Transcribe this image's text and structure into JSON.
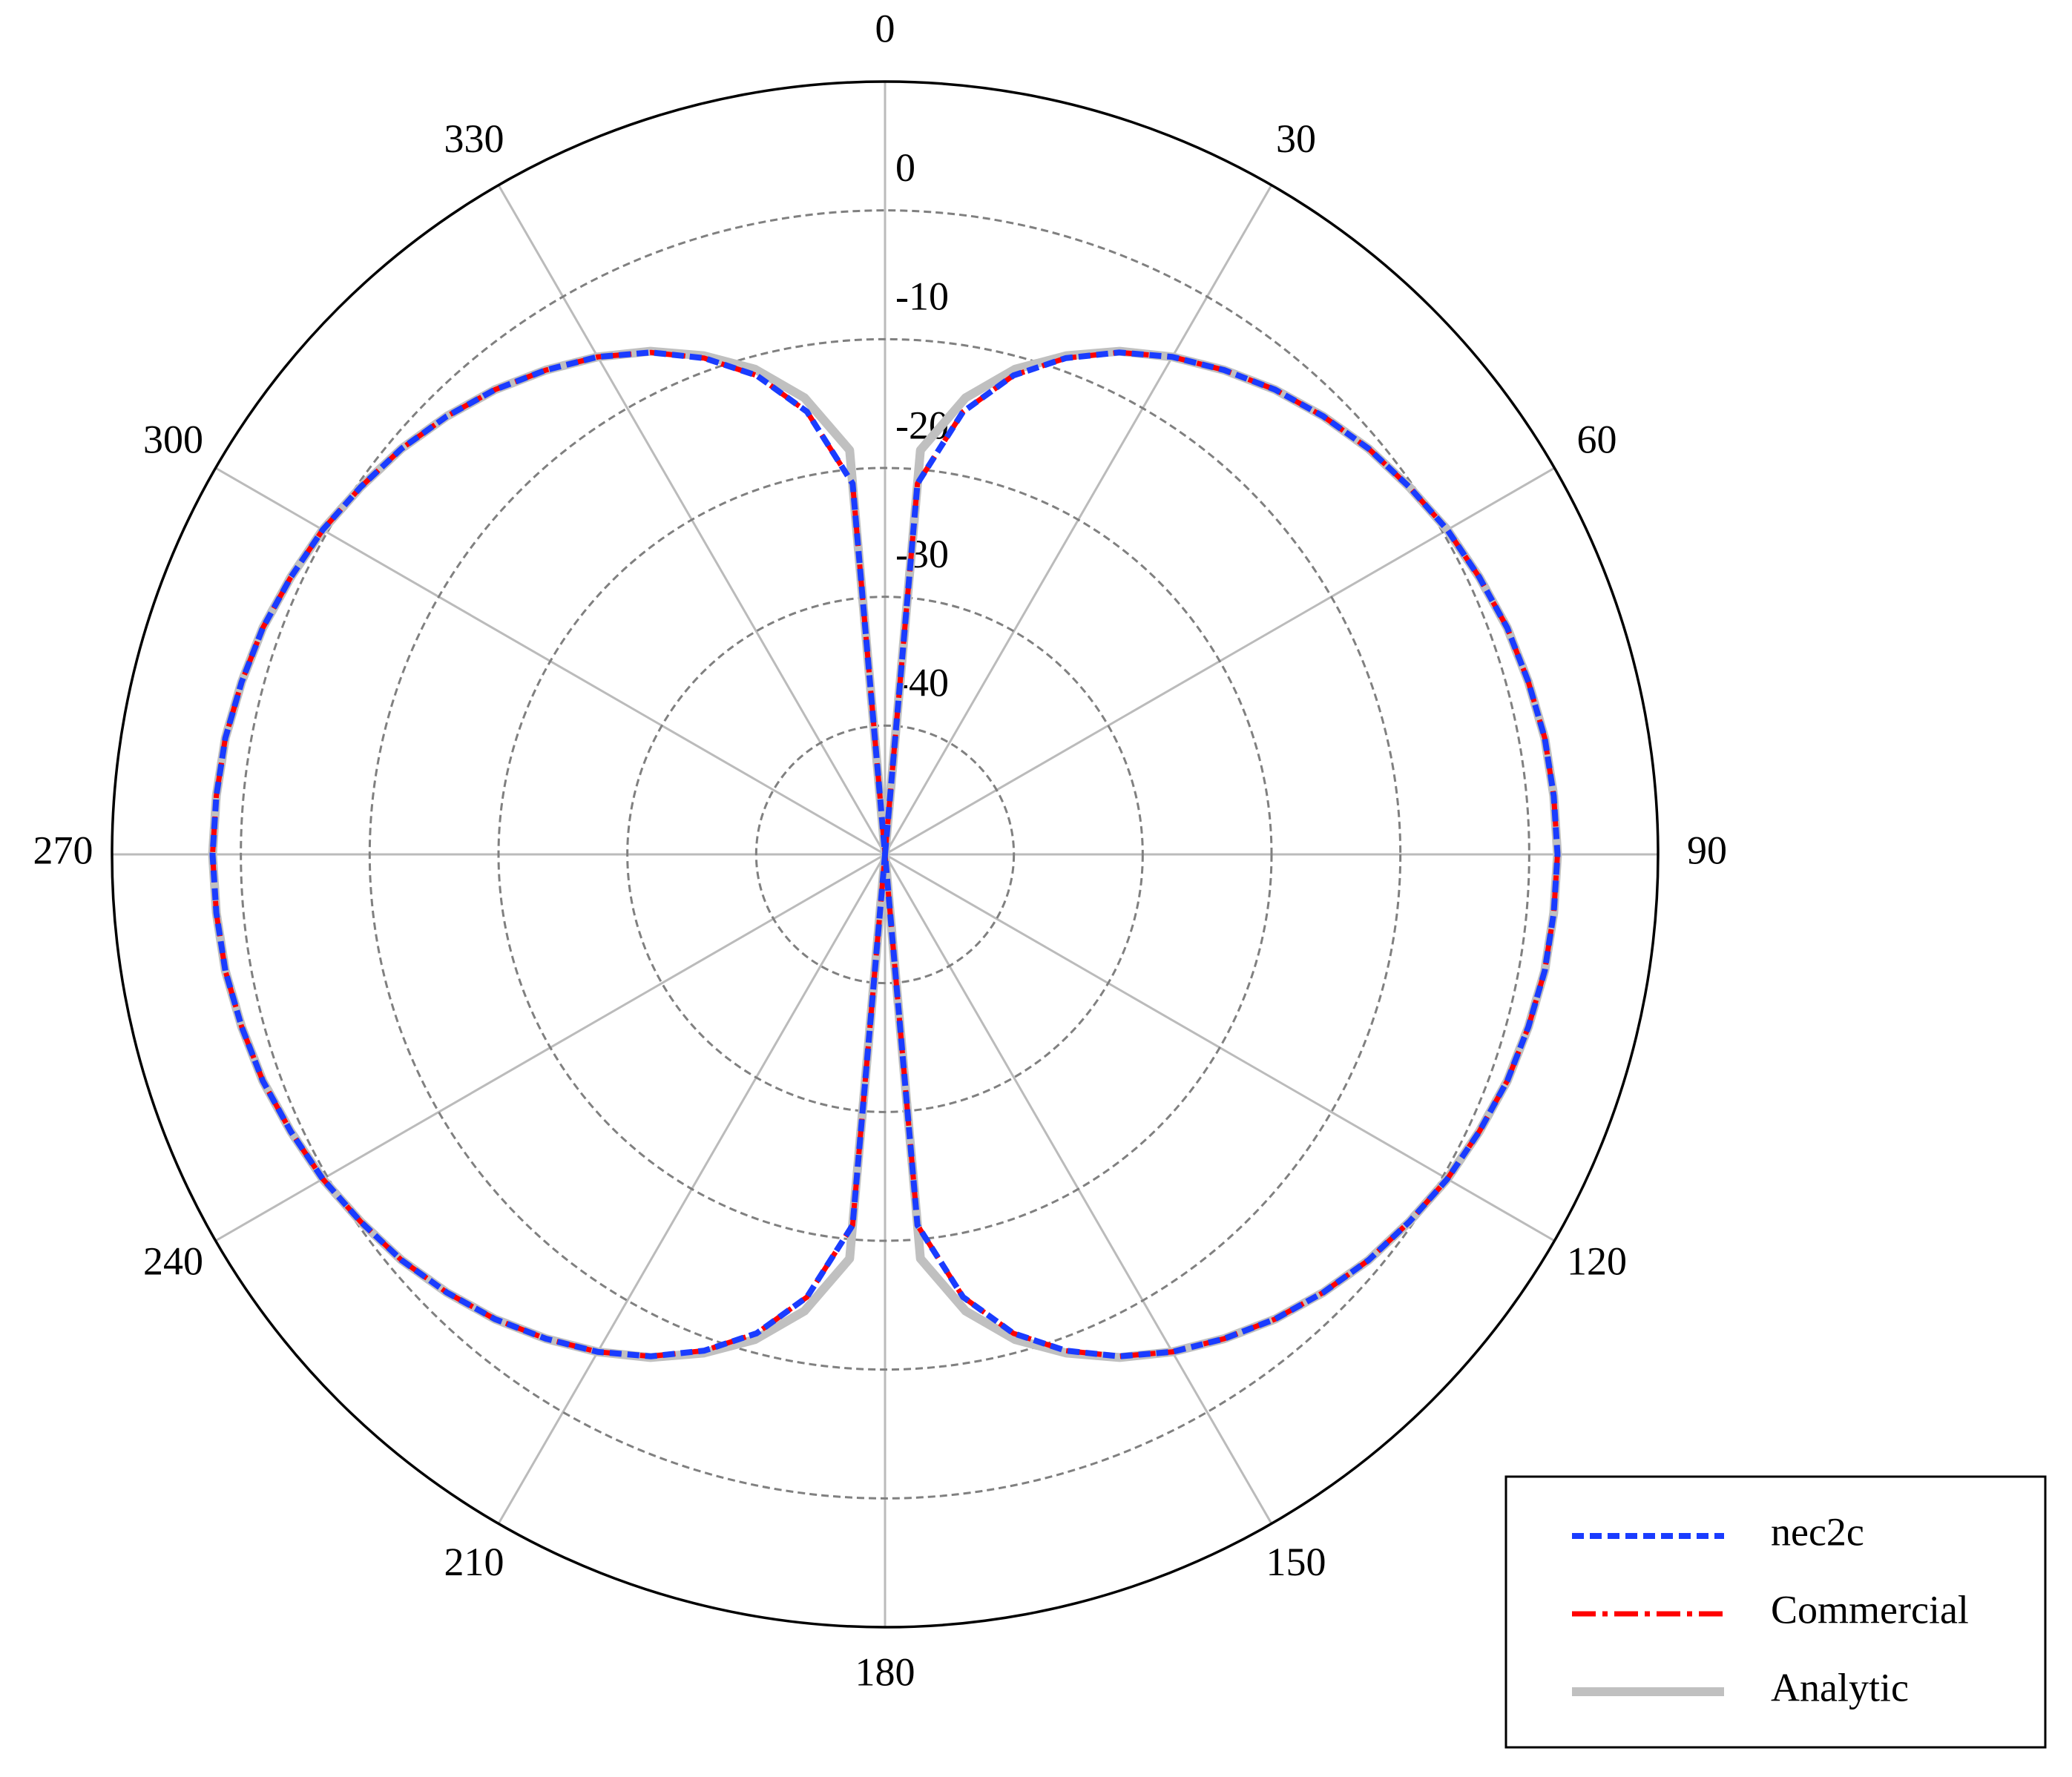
{
  "chart_data": {
    "type": "polar",
    "x": [
      0,
      5,
      10,
      15,
      20,
      25,
      30,
      35,
      40,
      45,
      50,
      55,
      60,
      65,
      70,
      75,
      80,
      85,
      90,
      95,
      100,
      105,
      110,
      115,
      120,
      125,
      130,
      135,
      140,
      145,
      150,
      155,
      160,
      165,
      170,
      175,
      180,
      185,
      190,
      195,
      200,
      205,
      210,
      215,
      220,
      225,
      230,
      235,
      240,
      245,
      250,
      255,
      260,
      265,
      270,
      275,
      280,
      285,
      290,
      295,
      300,
      305,
      310,
      315,
      320,
      325,
      330,
      335,
      340,
      345,
      350,
      355,
      360
    ],
    "thetaticks": [
      0,
      30,
      60,
      90,
      120,
      150,
      180,
      210,
      240,
      270,
      300,
      330
    ],
    "rlim": [
      -50,
      10
    ],
    "rticks": [
      -40,
      -30,
      -20,
      -10,
      0
    ],
    "grid": true,
    "legend": "lower right",
    "series": [
      {
        "name": "Analytic",
        "color": "#c0c0c0",
        "style": "solid",
        "values": [
          -50,
          -18.5,
          -14.0,
          -11.0,
          -8.8,
          -6.9,
          -5.4,
          -4.1,
          -2.9,
          -1.9,
          -1.0,
          -0.3,
          0.4,
          0.9,
          1.4,
          1.7,
          2.0,
          2.1,
          2.2,
          2.1,
          2.0,
          1.7,
          1.4,
          0.9,
          0.4,
          -0.3,
          -1.0,
          -1.9,
          -2.9,
          -4.1,
          -5.4,
          -6.9,
          -8.8,
          -11.0,
          -14.0,
          -18.5,
          -50,
          -18.5,
          -14.0,
          -11.0,
          -8.8,
          -6.9,
          -5.4,
          -4.1,
          -2.9,
          -1.9,
          -1.0,
          -0.3,
          0.4,
          0.9,
          1.4,
          1.7,
          2.0,
          2.1,
          2.2,
          2.1,
          2.0,
          1.7,
          1.4,
          0.9,
          0.4,
          -0.3,
          -1.0,
          -1.9,
          -2.9,
          -4.1,
          -5.4,
          -6.9,
          -8.8,
          -11.0,
          -14.0,
          -18.5,
          -50
        ]
      },
      {
        "name": "Commercial",
        "color": "#ff0000",
        "style": "dashdot",
        "values": [
          -50,
          -21.1,
          -15.1,
          -11.5,
          -9.0,
          -7.0,
          -5.4,
          -4.1,
          -2.9,
          -1.9,
          -1.0,
          -0.3,
          0.4,
          0.9,
          1.4,
          1.7,
          2.0,
          2.1,
          2.2,
          2.1,
          2.0,
          1.7,
          1.4,
          0.9,
          0.4,
          -0.3,
          -1.0,
          -1.9,
          -2.9,
          -4.1,
          -5.4,
          -7.0,
          -9.0,
          -11.5,
          -15.1,
          -21.1,
          -50,
          -21.1,
          -15.1,
          -11.5,
          -9.0,
          -7.0,
          -5.4,
          -4.1,
          -2.9,
          -1.9,
          -1.0,
          -0.3,
          0.4,
          0.9,
          1.4,
          1.7,
          2.0,
          2.1,
          2.2,
          2.1,
          2.0,
          1.7,
          1.4,
          0.9,
          0.4,
          -0.3,
          -1.0,
          -1.9,
          -2.9,
          -4.1,
          -5.4,
          -7.0,
          -9.0,
          -11.5,
          -15.1,
          -21.1,
          -50
        ]
      },
      {
        "name": "nec2c",
        "color": "#1a3cff",
        "style": "dashed",
        "values": [
          -50,
          -21.1,
          -15.1,
          -11.5,
          -9.0,
          -7.0,
          -5.4,
          -4.1,
          -2.9,
          -1.9,
          -1.0,
          -0.3,
          0.4,
          0.9,
          1.4,
          1.7,
          2.0,
          2.1,
          2.2,
          2.1,
          2.0,
          1.7,
          1.4,
          0.9,
          0.4,
          -0.3,
          -1.0,
          -1.9,
          -2.9,
          -4.1,
          -5.4,
          -7.0,
          -9.0,
          -11.5,
          -15.1,
          -21.1,
          -50,
          -21.1,
          -15.1,
          -11.5,
          -9.0,
          -7.0,
          -5.4,
          -4.1,
          -2.9,
          -1.9,
          -1.0,
          -0.3,
          0.4,
          0.9,
          1.4,
          1.7,
          2.0,
          2.1,
          2.2,
          2.1,
          2.0,
          1.7,
          1.4,
          0.9,
          0.4,
          -0.3,
          -1.0,
          -1.9,
          -2.9,
          -4.1,
          -5.4,
          -7.0,
          -9.0,
          -11.5,
          -15.1,
          -21.1,
          -50
        ]
      }
    ]
  }
}
